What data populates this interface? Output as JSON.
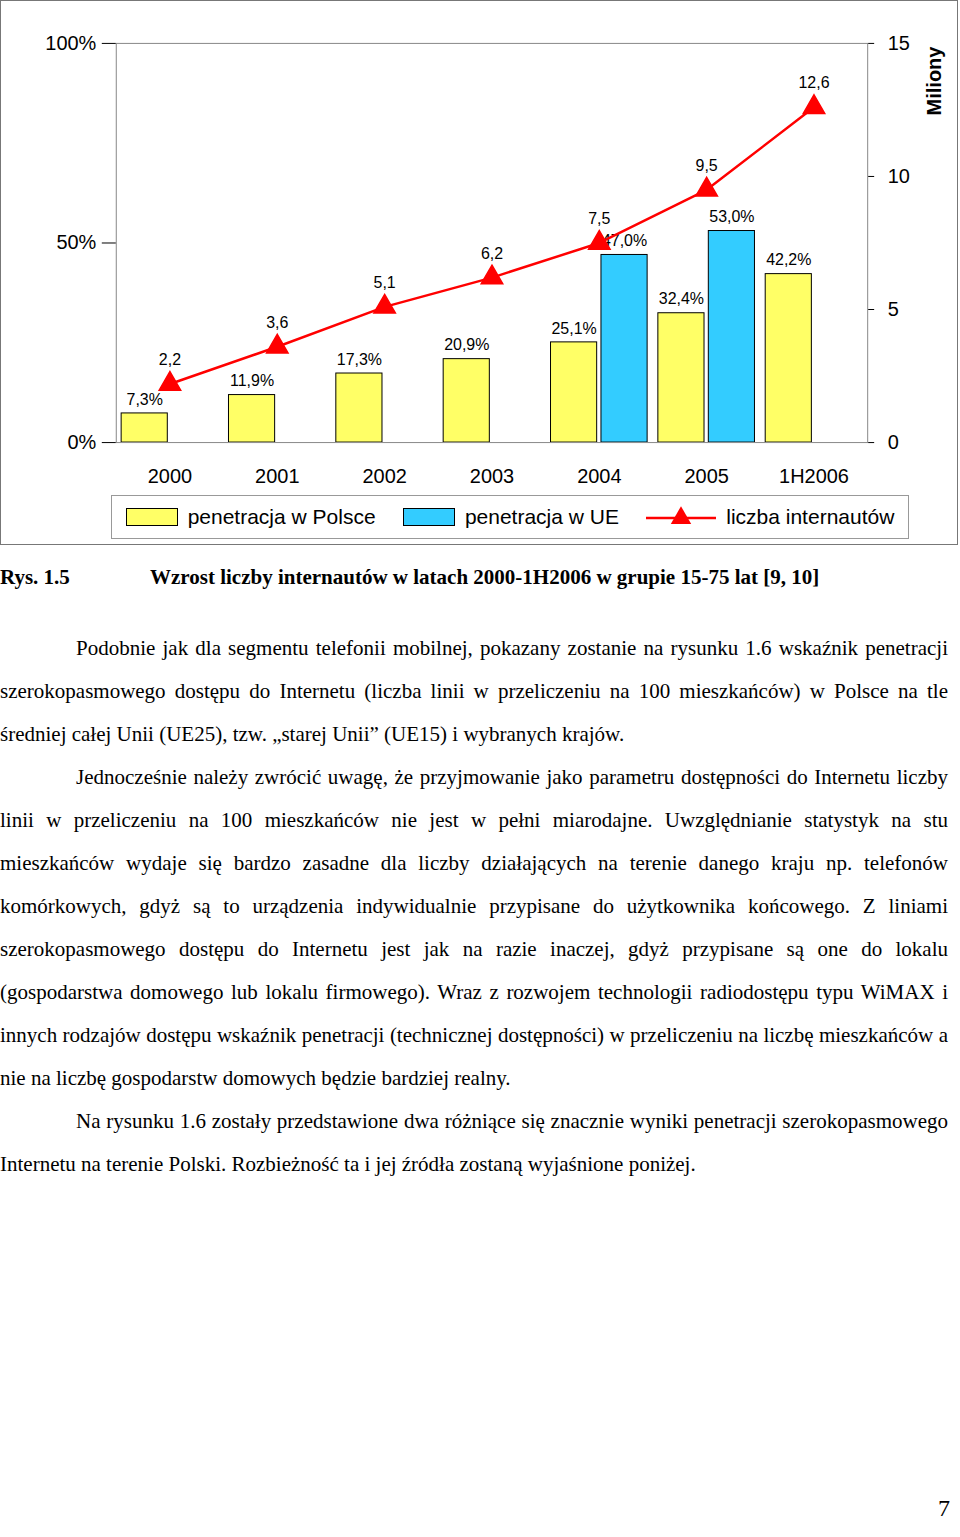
{
  "chart_data": {
    "type": "bar",
    "categories": [
      "2000",
      "2001",
      "2002",
      "2003",
      "2004",
      "2005",
      "1H2006"
    ],
    "series": [
      {
        "name": "penetracja w Polsce",
        "color": "#ffff66",
        "values": [
          7.3,
          11.9,
          17.3,
          20.9,
          25.1,
          32.4,
          42.2
        ],
        "value_labels": [
          "7,3%",
          "11,9%",
          "17,3%",
          "20,9%",
          "25,1%",
          "32,4%",
          "42,2%"
        ]
      },
      {
        "name": "penetracja w UE",
        "color": "#33ccff",
        "values": [
          null,
          null,
          null,
          null,
          47.0,
          53.0,
          null
        ],
        "value_labels": [
          null,
          null,
          null,
          null,
          "47,0%",
          "53,0%",
          null
        ]
      },
      {
        "name": "liczba internautów",
        "type": "line",
        "axis": "y2",
        "color": "#ff0000",
        "marker": "triangle",
        "values": [
          2.2,
          3.6,
          5.1,
          6.2,
          7.5,
          9.5,
          12.6
        ],
        "value_labels": [
          "2,2",
          "3,6",
          "5,1",
          "6,2",
          "7,5",
          "9,5",
          "12,6"
        ]
      }
    ],
    "ylim": [
      0,
      100
    ],
    "yticks": [
      {
        "value": 0,
        "label": "0%"
      },
      {
        "value": 50,
        "label": "50%"
      },
      {
        "value": 100,
        "label": "100%"
      }
    ],
    "y2lim": [
      0,
      15
    ],
    "y2ticks": [
      0,
      5,
      10,
      15
    ],
    "y2label": "Miliony",
    "data_labels": true,
    "legend": "bottom"
  },
  "caption": {
    "label": "Rys. 1.5",
    "text": "Wzrost liczby internautów w latach 2000-1H2006 w grupie 15-75 lat [9, 10]"
  },
  "paragraphs": [
    "Podobnie jak dla segmentu telefonii mobilnej, pokazany zostanie na rysunku 1.6 wskaźnik penetracji szerokopasmowego dostępu do Internetu (liczba linii w przeliczeniu na 100 mieszkańców) w Polsce na tle średniej całej Unii (UE25), tzw. „starej Unii” (UE15) i wybranych krajów.",
    "Jednocześnie należy zwrócić uwagę, że przyjmowanie jako parametru dostępności do Internetu liczby linii w przeliczeniu na 100 mieszkańców nie jest w pełni miarodajne. Uwzględnianie statystyk na stu mieszkańców wydaje się bardzo zasadne dla liczby działających na terenie danego kraju np. telefonów komórkowych, gdyż są to urządzenia indywidualnie przypisane do użytkownika końcowego. Z liniami szerokopasmowego dostępu do Internetu jest jak na razie inaczej, gdyż przypisane są one do lokalu (gospodarstwa domowego lub lokalu firmowego). Wraz z rozwojem technologii radiodostępu typu WiMAX i innych rodzajów dostępu wskaźnik penetracji (technicznej dostępności) w przeliczeniu na liczbę mieszkańców a nie na liczbę gospodarstw domowych będzie bardziej realny.",
    "Na rysunku 1.6 zostały przedstawione dwa różniące się znacznie wyniki penetracji szerokopasmowego Internetu na terenie Polski. Rozbieżność ta i jej źródła zostaną wyjaśnione poniżej."
  ],
  "page_number": "7"
}
